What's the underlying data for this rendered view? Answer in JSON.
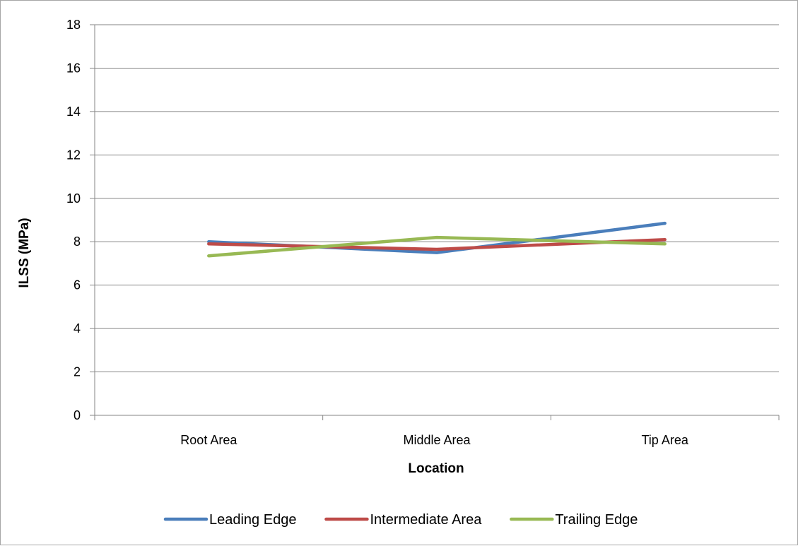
{
  "chart_data": {
    "type": "line",
    "title": "",
    "xlabel": "Location",
    "ylabel": "ILSS (MPa)",
    "categories": [
      "Root Area",
      "Middle Area",
      "Tip Area"
    ],
    "ylim": [
      0,
      18
    ],
    "ytick_step": 2,
    "yticks": [
      "0",
      "2",
      "4",
      "6",
      "8",
      "10",
      "12",
      "14",
      "16",
      "18"
    ],
    "grid": "horizontal",
    "legend_position": "bottom",
    "series": [
      {
        "name": "Leading Edge",
        "color": "#4a7ebb",
        "values": [
          8.0,
          7.5,
          8.85
        ]
      },
      {
        "name": "Intermediate Area",
        "color": "#be4b48",
        "values": [
          7.9,
          7.65,
          8.1
        ]
      },
      {
        "name": "Trailing Edge",
        "color": "#98b954",
        "values": [
          7.35,
          8.2,
          7.9
        ]
      }
    ]
  }
}
